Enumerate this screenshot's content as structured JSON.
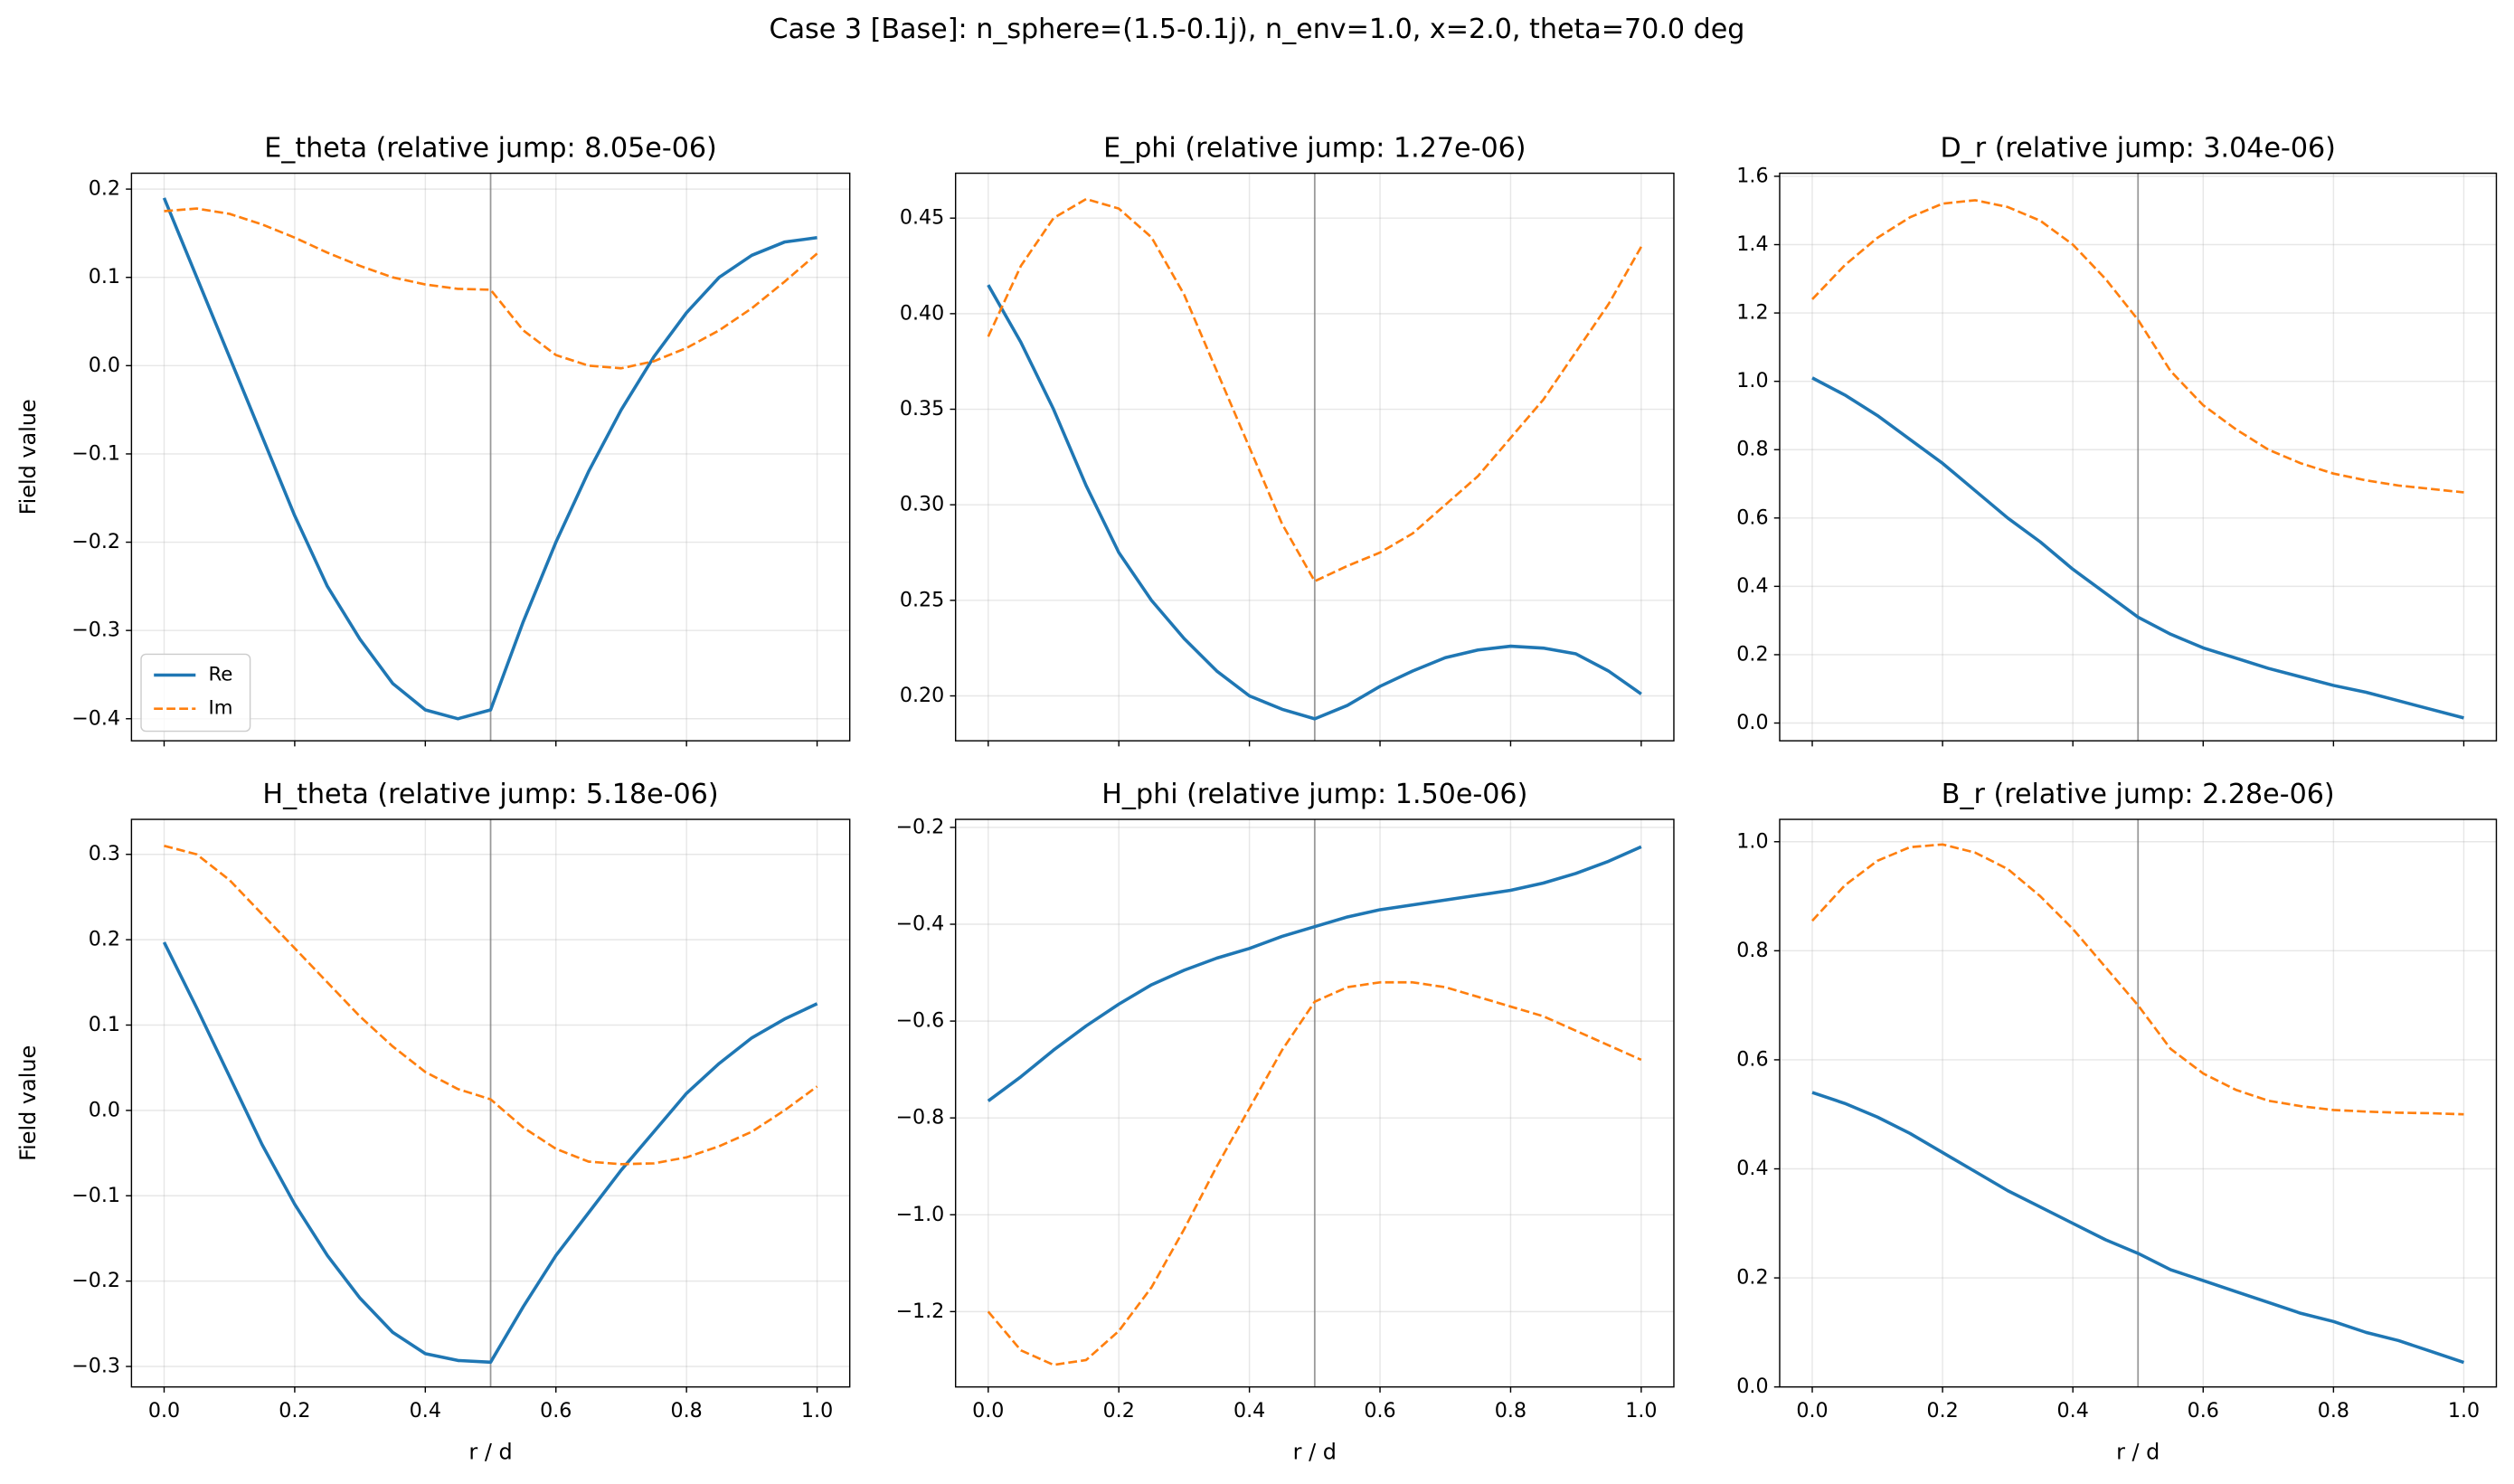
{
  "title": "Case 3 [Base]: n_sphere=(1.5-0.1j), n_env=1.0, x=2.0, theta=70.0 deg",
  "chart_data": [
    {
      "type": "line",
      "title": "E_theta (relative jump: 8.05e-06)",
      "ylabel": "Field value",
      "legend": "lower left",
      "grid": true,
      "vline": 0.5,
      "xticklabels": false,
      "x": [
        0,
        0.05,
        0.1,
        0.15,
        0.2,
        0.25,
        0.3,
        0.35,
        0.4,
        0.45,
        0.5,
        0.55,
        0.6,
        0.65,
        0.7,
        0.75,
        0.8,
        0.85,
        0.9,
        0.95,
        1
      ],
      "series": [
        {
          "name": "Re",
          "color": "#1f77b4",
          "linestyle": "solid",
          "values": [
            0.19,
            0.1,
            0.01,
            -0.08,
            -0.17,
            -0.25,
            -0.31,
            -0.36,
            -0.39,
            -0.4,
            -0.39,
            -0.29,
            -0.2,
            -0.12,
            -0.05,
            0.01,
            0.06,
            0.1,
            0.125,
            0.14,
            0.145
          ]
        },
        {
          "name": "Im",
          "color": "#ff7f0e",
          "linestyle": "dashed",
          "values": [
            0.175,
            0.178,
            0.172,
            0.16,
            0.145,
            0.128,
            0.113,
            0.1,
            0.092,
            0.087,
            0.086,
            0.04,
            0.012,
            0.0,
            -0.003,
            0.005,
            0.02,
            0.04,
            0.065,
            0.095,
            0.127
          ]
        }
      ],
      "xlim": [
        -0.05,
        1.05
      ],
      "xticks": [
        0,
        0.2,
        0.4,
        0.6,
        0.8,
        1
      ],
      "ylim": [
        -0.425,
        0.218
      ],
      "yticks": [
        {
          "value": -0.4,
          "label": "−0.4"
        },
        {
          "value": -0.3,
          "label": "−0.3"
        },
        {
          "value": -0.2,
          "label": "−0.2"
        },
        {
          "value": -0.1,
          "label": "−0.1"
        },
        {
          "value": 0,
          "label": "0.0"
        },
        0.1,
        0.2
      ]
    },
    {
      "type": "line",
      "title": "E_phi (relative jump: 1.27e-06)",
      "grid": true,
      "vline": 0.5,
      "xticklabels": false,
      "x": [
        0,
        0.05,
        0.1,
        0.15,
        0.2,
        0.25,
        0.3,
        0.35,
        0.4,
        0.45,
        0.5,
        0.55,
        0.6,
        0.65,
        0.7,
        0.75,
        0.8,
        0.85,
        0.9,
        0.95,
        1
      ],
      "series": [
        {
          "name": "Re",
          "color": "#1f77b4",
          "linestyle": "solid",
          "values": [
            0.415,
            0.385,
            0.35,
            0.31,
            0.275,
            0.25,
            0.23,
            0.213,
            0.2,
            0.193,
            0.188,
            0.195,
            0.205,
            0.213,
            0.22,
            0.224,
            0.226,
            0.225,
            0.222,
            0.213,
            0.201
          ]
        },
        {
          "name": "Im",
          "color": "#ff7f0e",
          "linestyle": "dashed",
          "values": [
            0.388,
            0.425,
            0.45,
            0.46,
            0.455,
            0.44,
            0.41,
            0.37,
            0.33,
            0.29,
            0.26,
            0.268,
            0.275,
            0.285,
            0.3,
            0.315,
            0.335,
            0.355,
            0.38,
            0.405,
            0.435
          ]
        }
      ],
      "xlim": [
        -0.05,
        1.05
      ],
      "xticks": [
        0,
        0.2,
        0.4,
        0.6,
        0.8,
        1
      ],
      "ylim": [
        0.1765,
        0.4735
      ],
      "yticks": [
        {
          "value": 0.2,
          "label": "0.20"
        },
        0.25,
        {
          "value": 0.3,
          "label": "0.30"
        },
        0.35,
        {
          "value": 0.4,
          "label": "0.40"
        },
        0.45
      ]
    },
    {
      "type": "line",
      "title": "D_r (relative jump: 3.04e-06)",
      "grid": true,
      "vline": 0.5,
      "xticklabels": false,
      "x": [
        0,
        0.05,
        0.1,
        0.15,
        0.2,
        0.25,
        0.3,
        0.35,
        0.4,
        0.45,
        0.5,
        0.55,
        0.6,
        0.65,
        0.7,
        0.75,
        0.8,
        0.85,
        0.9,
        0.95,
        1
      ],
      "series": [
        {
          "name": "Re",
          "color": "#1f77b4",
          "linestyle": "solid",
          "values": [
            1.01,
            0.96,
            0.9,
            0.83,
            0.76,
            0.68,
            0.6,
            0.53,
            0.45,
            0.38,
            0.31,
            0.26,
            0.22,
            0.19,
            0.16,
            0.135,
            0.11,
            0.09,
            0.065,
            0.04,
            0.015
          ]
        },
        {
          "name": "Im",
          "color": "#ff7f0e",
          "linestyle": "dashed",
          "values": [
            1.24,
            1.34,
            1.42,
            1.48,
            1.52,
            1.53,
            1.51,
            1.47,
            1.4,
            1.3,
            1.18,
            1.03,
            0.93,
            0.86,
            0.8,
            0.76,
            0.73,
            0.71,
            0.695,
            0.685,
            0.675
          ]
        }
      ],
      "xlim": [
        -0.05,
        1.05
      ],
      "xticks": [
        0,
        0.2,
        0.4,
        0.6,
        0.8,
        1
      ],
      "ylim": [
        -0.052,
        1.609
      ],
      "yticks": [
        {
          "value": 0,
          "label": "0.0"
        },
        0.2,
        0.4,
        0.6,
        0.8,
        {
          "value": 1,
          "label": "1.0"
        },
        1.2,
        1.4,
        1.6
      ]
    },
    {
      "type": "line",
      "title": "H_theta (relative jump: 5.18e-06)",
      "ylabel": "Field value",
      "xlabel": "r / d",
      "grid": true,
      "vline": 0.5,
      "x": [
        0,
        0.05,
        0.1,
        0.15,
        0.2,
        0.25,
        0.3,
        0.35,
        0.4,
        0.45,
        0.5,
        0.55,
        0.6,
        0.65,
        0.7,
        0.75,
        0.8,
        0.85,
        0.9,
        0.95,
        1
      ],
      "series": [
        {
          "name": "Re",
          "color": "#1f77b4",
          "linestyle": "solid",
          "values": [
            0.197,
            0.12,
            0.04,
            -0.04,
            -0.11,
            -0.17,
            -0.22,
            -0.26,
            -0.285,
            -0.293,
            -0.295,
            -0.23,
            -0.17,
            -0.12,
            -0.07,
            -0.025,
            0.02,
            0.055,
            0.085,
            0.107,
            0.125
          ]
        },
        {
          "name": "Im",
          "color": "#ff7f0e",
          "linestyle": "dashed",
          "values": [
            0.31,
            0.3,
            0.27,
            0.23,
            0.19,
            0.15,
            0.11,
            0.075,
            0.045,
            0.025,
            0.013,
            -0.02,
            -0.045,
            -0.06,
            -0.063,
            -0.062,
            -0.055,
            -0.042,
            -0.025,
            0.0,
            0.028
          ]
        }
      ],
      "xlim": [
        -0.05,
        1.05
      ],
      "xticks": [
        {
          "value": 0,
          "label": "0.0"
        },
        0.2,
        0.4,
        0.6,
        0.8,
        {
          "value": 1,
          "label": "1.0"
        }
      ],
      "ylim": [
        -0.324,
        0.341
      ],
      "yticks": [
        {
          "value": -0.3,
          "label": "−0.3"
        },
        {
          "value": -0.2,
          "label": "−0.2"
        },
        {
          "value": -0.1,
          "label": "−0.1"
        },
        {
          "value": 0,
          "label": "0.0"
        },
        0.1,
        0.2,
        0.3
      ]
    },
    {
      "type": "line",
      "title": "H_phi (relative jump: 1.50e-06)",
      "xlabel": "r / d",
      "grid": true,
      "vline": 0.5,
      "x": [
        0,
        0.05,
        0.1,
        0.15,
        0.2,
        0.25,
        0.3,
        0.35,
        0.4,
        0.45,
        0.5,
        0.55,
        0.6,
        0.65,
        0.7,
        0.75,
        0.8,
        0.85,
        0.9,
        0.95,
        1
      ],
      "series": [
        {
          "name": "Re",
          "color": "#1f77b4",
          "linestyle": "solid",
          "values": [
            -0.765,
            -0.715,
            -0.66,
            -0.61,
            -0.565,
            -0.525,
            -0.495,
            -0.47,
            -0.45,
            -0.425,
            -0.405,
            -0.385,
            -0.37,
            -0.36,
            -0.35,
            -0.34,
            -0.33,
            -0.315,
            -0.295,
            -0.27,
            -0.24
          ]
        },
        {
          "name": "Im",
          "color": "#ff7f0e",
          "linestyle": "dashed",
          "values": [
            -1.2,
            -1.28,
            -1.31,
            -1.3,
            -1.24,
            -1.15,
            -1.03,
            -0.9,
            -0.78,
            -0.66,
            -0.56,
            -0.53,
            -0.52,
            -0.52,
            -0.53,
            -0.55,
            -0.57,
            -0.59,
            -0.62,
            -0.65,
            -0.68
          ]
        }
      ],
      "xlim": [
        -0.05,
        1.05
      ],
      "xticks": [
        {
          "value": 0,
          "label": "0.0"
        },
        0.2,
        0.4,
        0.6,
        0.8,
        {
          "value": 1,
          "label": "1.0"
        }
      ],
      "ylim": [
        -1.3556,
        -0.1834
      ],
      "yticks": [
        {
          "value": -1.2,
          "label": "−1.2"
        },
        {
          "value": -1,
          "label": "−1.0"
        },
        {
          "value": -0.8,
          "label": "−0.8"
        },
        {
          "value": -0.6,
          "label": "−0.6"
        },
        {
          "value": -0.4,
          "label": "−0.4"
        },
        {
          "value": -0.2,
          "label": "−0.2"
        }
      ]
    },
    {
      "type": "line",
      "title": "B_r (relative jump: 2.28e-06)",
      "xlabel": "r / d",
      "grid": true,
      "vline": 0.5,
      "x": [
        0,
        0.05,
        0.1,
        0.15,
        0.2,
        0.25,
        0.3,
        0.35,
        0.4,
        0.45,
        0.5,
        0.55,
        0.6,
        0.65,
        0.7,
        0.75,
        0.8,
        0.85,
        0.9,
        0.95,
        1
      ],
      "series": [
        {
          "name": "Re",
          "color": "#1f77b4",
          "linestyle": "solid",
          "values": [
            0.54,
            0.52,
            0.495,
            0.465,
            0.43,
            0.395,
            0.36,
            0.33,
            0.3,
            0.27,
            0.245,
            0.215,
            0.195,
            0.175,
            0.155,
            0.135,
            0.12,
            0.1,
            0.085,
            0.065,
            0.045
          ]
        },
        {
          "name": "Im",
          "color": "#ff7f0e",
          "linestyle": "dashed",
          "values": [
            0.855,
            0.92,
            0.965,
            0.99,
            0.995,
            0.98,
            0.95,
            0.9,
            0.84,
            0.77,
            0.7,
            0.62,
            0.575,
            0.545,
            0.525,
            0.515,
            0.508,
            0.505,
            0.503,
            0.502,
            0.5
          ]
        }
      ],
      "xlim": [
        -0.05,
        1.05
      ],
      "xticks": [
        {
          "value": 0,
          "label": "0.0"
        },
        0.2,
        0.4,
        0.6,
        0.8,
        {
          "value": 1,
          "label": "1.0"
        }
      ],
      "ylim": [
        0,
        1.041
      ],
      "yticks": [
        {
          "value": 0,
          "label": "0.0"
        },
        0.2,
        0.4,
        0.6,
        0.8,
        {
          "value": 1,
          "label": "1.0"
        }
      ]
    }
  ]
}
